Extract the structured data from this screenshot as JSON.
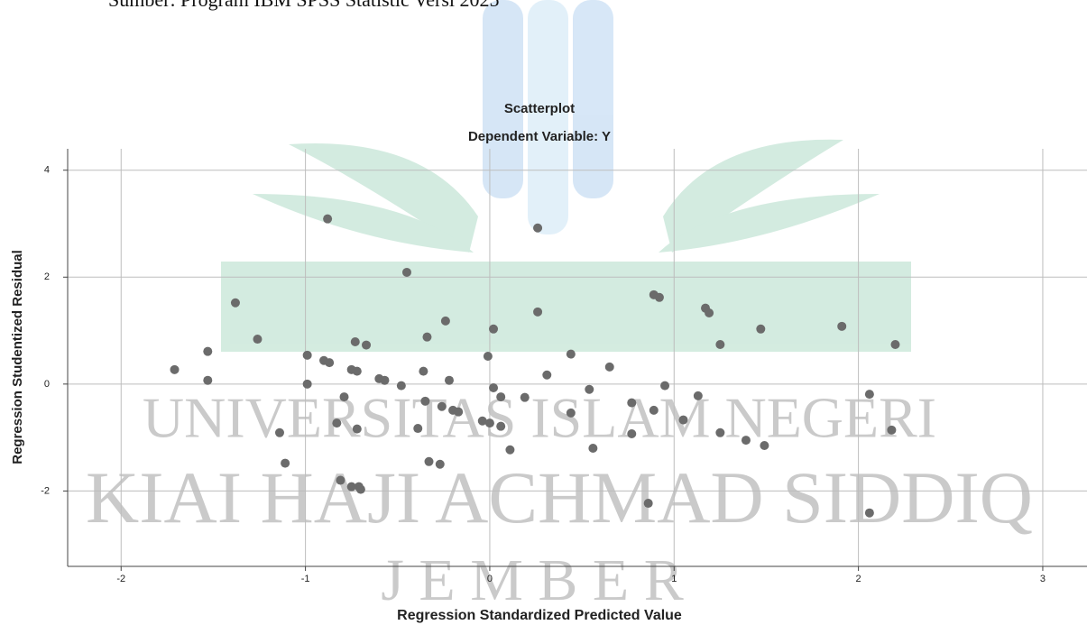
{
  "caption": "Sumber: Program IBM SPSS Statistic Versi 2025",
  "watermark": [
    "UNIVERSITAS ISLAM NEGERI",
    "KIAI HAJI ACHMAD SIDDIQ",
    "J E M B E R"
  ],
  "chart_data": {
    "type": "scatter",
    "title": "Scatterplot",
    "subtitle": "Dependent Variable: Y",
    "x_label": "Regression Standardized Predicted Value",
    "y_label": "Regression Studentized Residual",
    "color": "#6b6b6b",
    "grid": true,
    "xlim": [
      -2.29,
      3.24
    ],
    "xticks": [
      -2,
      -1,
      0,
      1,
      2,
      3
    ],
    "ylim": [
      -3.41,
      4.4
    ],
    "yticks": [
      -2,
      0,
      2,
      4
    ],
    "x": [
      -1.71,
      -1.53,
      -1.53,
      -1.38,
      -1.26,
      -1.14,
      -1.11,
      -0.99,
      -0.99,
      -0.88,
      -0.9,
      -0.87,
      -0.79,
      -0.83,
      -0.81,
      -0.75,
      -0.75,
      -0.72,
      -0.73,
      -0.72,
      -0.71,
      -0.7,
      -0.67,
      -0.6,
      -0.57,
      -0.48,
      -0.45,
      -0.34,
      -0.39,
      -0.36,
      -0.35,
      -0.33,
      -0.27,
      -0.26,
      -0.24,
      -0.22,
      -0.2,
      -0.17,
      -0.01,
      0.02,
      0.02,
      -0.04,
      0.0,
      0.06,
      0.06,
      0.11,
      0.19,
      0.26,
      0.26,
      0.31,
      0.44,
      0.44,
      0.54,
      0.56,
      0.65,
      0.77,
      0.77,
      0.86,
      0.89,
      0.89,
      0.92,
      0.95,
      1.05,
      1.13,
      1.17,
      1.19,
      1.25,
      1.25,
      1.39,
      1.47,
      1.49,
      1.91,
      2.06,
      2.06,
      2.18,
      2.2
    ],
    "values": [
      0.27,
      0.61,
      0.07,
      1.52,
      0.84,
      -0.91,
      -1.48,
      0.54,
      0.0,
      3.09,
      0.44,
      0.4,
      -0.24,
      -0.73,
      -1.8,
      -1.92,
      0.27,
      0.24,
      0.79,
      -0.84,
      -1.92,
      -1.97,
      0.73,
      0.1,
      0.07,
      -0.03,
      2.09,
      0.88,
      -0.83,
      0.24,
      -0.32,
      -1.45,
      -1.5,
      -0.42,
      1.18,
      0.07,
      -0.49,
      -0.52,
      0.52,
      1.03,
      -0.07,
      -0.69,
      -0.73,
      -0.79,
      -0.24,
      -1.23,
      -0.25,
      2.92,
      1.35,
      0.17,
      0.56,
      -0.54,
      -0.1,
      -1.2,
      0.32,
      -0.35,
      -0.93,
      -2.23,
      -0.49,
      1.67,
      1.62,
      -0.03,
      -0.67,
      -0.22,
      1.42,
      1.33,
      0.74,
      -0.91,
      -1.05,
      1.03,
      -1.15,
      1.08,
      -0.19,
      -2.41,
      -0.86,
      0.74
    ]
  }
}
